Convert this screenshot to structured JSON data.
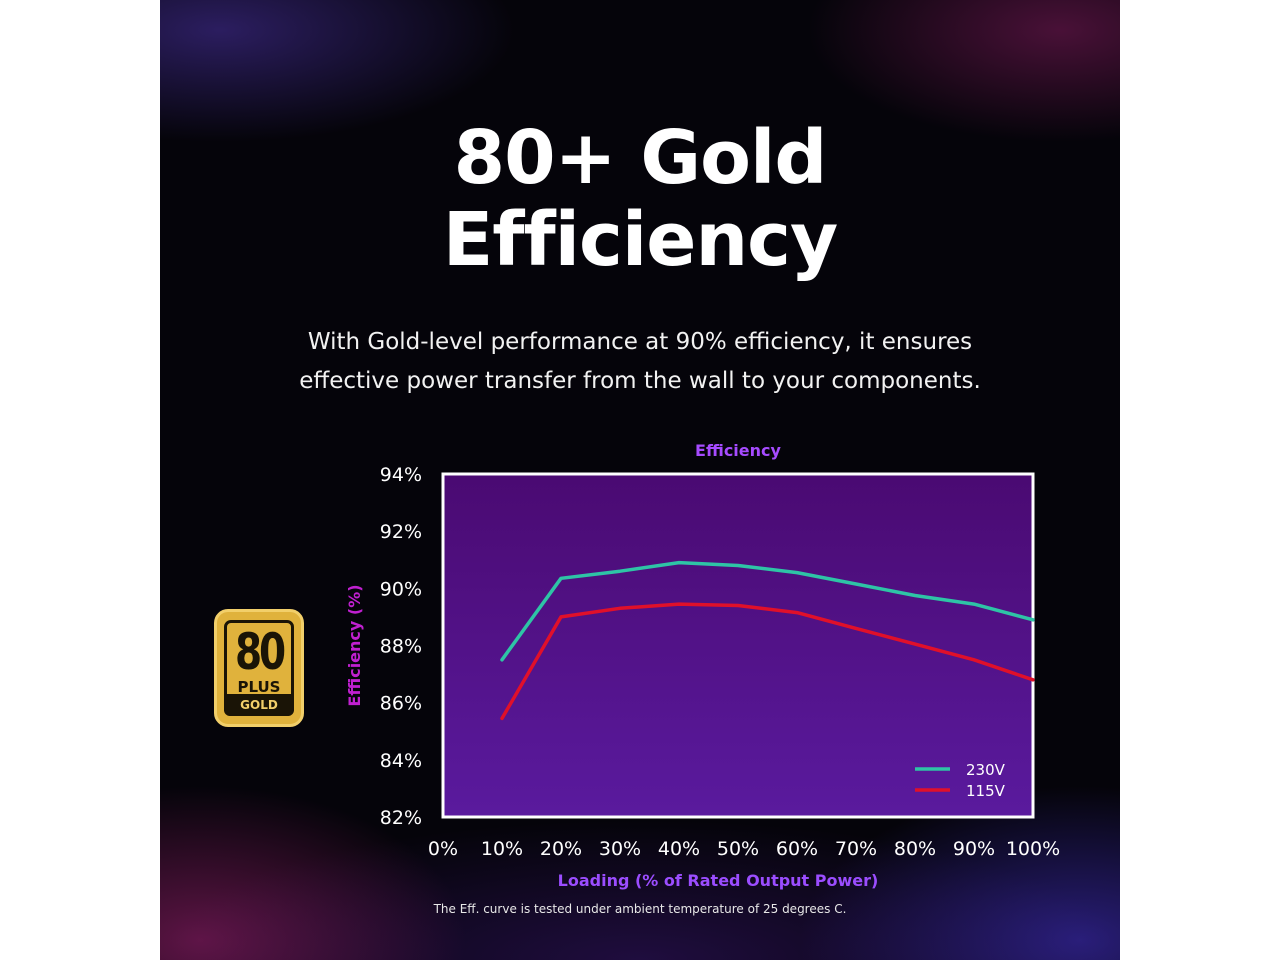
{
  "heading": {
    "line1": "80+ Gold",
    "line2": "Efficiency"
  },
  "description": {
    "line1": "With Gold-level performance at 90% efficiency, it ensures",
    "line2": "effective power transfer from the wall to your components."
  },
  "badge": {
    "number": "80",
    "plus": "PLUS",
    "tier": "GOLD",
    "icon": "80-plus-gold-logo"
  },
  "footnote": "The Eff. curve is tested under ambient temperature of 25 degrees C.",
  "colors": {
    "plot_background": "#4a0a72",
    "accent_title": "#a64bff",
    "series_230v": "#2ec4a6",
    "series_115v": "#e0102a"
  },
  "chart_data": {
    "type": "line",
    "title": "Efficiency",
    "xlabel": "Loading (% of Rated Output Power)",
    "ylabel": "Efficiency (%)",
    "x": [
      10,
      20,
      30,
      40,
      50,
      60,
      70,
      80,
      90,
      100
    ],
    "x_ticks": [
      "0%",
      "10%",
      "20%",
      "30%",
      "40%",
      "50%",
      "60%",
      "70%",
      "80%",
      "90%",
      "100%"
    ],
    "y_ticks": [
      "82%",
      "84%",
      "86%",
      "88%",
      "90%",
      "92%",
      "94%"
    ],
    "xlim": [
      0,
      100
    ],
    "ylim": [
      82,
      94
    ],
    "grid": false,
    "legend_position": "bottom-right",
    "series": [
      {
        "name": "230V",
        "color": "#2ec4a6",
        "values": [
          87.5,
          90.35,
          90.6,
          90.9,
          90.8,
          90.55,
          90.15,
          89.75,
          89.45,
          88.9
        ]
      },
      {
        "name": "115V",
        "color": "#e0102a",
        "values": [
          85.45,
          89.0,
          89.3,
          89.45,
          89.4,
          89.15,
          88.6,
          88.05,
          87.5,
          86.8
        ]
      }
    ]
  }
}
